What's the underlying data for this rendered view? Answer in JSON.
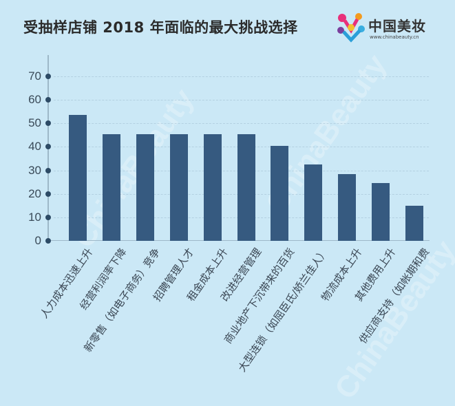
{
  "title": "受抽样店铺 2018 年面临的最大挑战选择",
  "logo": {
    "name": "中国美妆",
    "url": "www.chinabeauty.cn",
    "icon": "chinabeauty-logo-icon"
  },
  "watermark": "ChinaBeauty",
  "colors": {
    "background": "#cbe8f6",
    "bar": "#365a80",
    "axis": "#9db8c8",
    "tick_dot": "#2d4b66"
  },
  "y_ticks": [
    "0",
    "10",
    "20",
    "30",
    "40",
    "50",
    "60",
    "70"
  ],
  "chart_data": {
    "type": "bar",
    "title": "受抽样店铺 2018 年面临的最大挑战选择",
    "xlabel": "",
    "ylabel": "",
    "ylim": [
      0,
      75
    ],
    "yticks": [
      0,
      10,
      20,
      30,
      40,
      50,
      60,
      70
    ],
    "grid": true,
    "legend": null,
    "categories": [
      "人力成本迅速上升",
      "经营利润率下降",
      "新零售（如电子商务）竞争",
      "招聘管理人才",
      "租金成本上升",
      "改进经营管理",
      "商业地产下沉带来的百货",
      "大型连锁（如屈臣氏/娇兰佳人）",
      "物流成本上升",
      "其他费用上升",
      "供应商支持（如帐期和费"
    ],
    "values": [
      53.5,
      45.5,
      45.5,
      45.5,
      45.5,
      45.5,
      40.5,
      32.5,
      28.5,
      24.5,
      15
    ]
  }
}
